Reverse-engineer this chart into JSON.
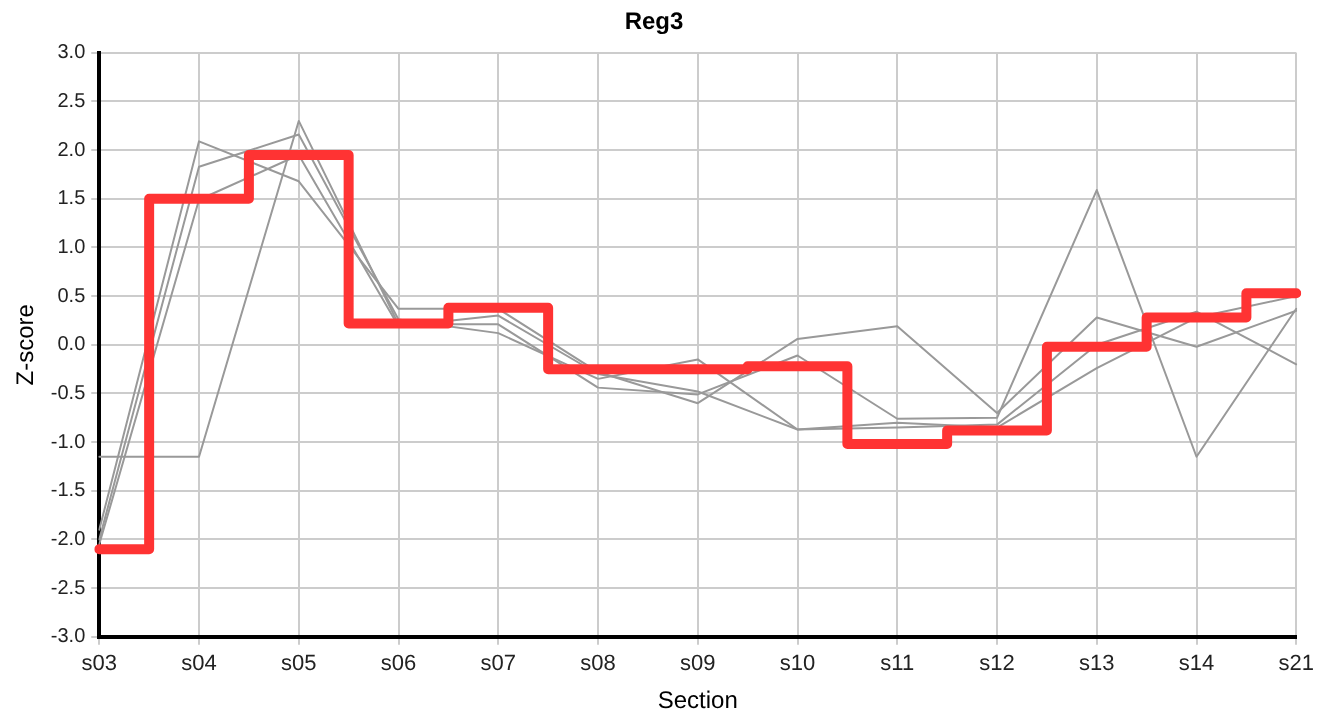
{
  "chart_data": {
    "type": "line",
    "title": "Reg3",
    "xlabel": "Section",
    "ylabel": "Z-score",
    "categories": [
      "s03",
      "s04",
      "s05",
      "s06",
      "s07",
      "s08",
      "s09",
      "s10",
      "s11",
      "s12",
      "s13",
      "s14",
      "s21"
    ],
    "series": [
      {
        "type": "step",
        "color": "#ff3333",
        "values": [
          -2.1,
          1.5,
          1.95,
          0.22,
          0.38,
          -0.25,
          -0.25,
          -0.22,
          -1.02,
          -0.88,
          -0.02,
          0.28,
          0.53
        ]
      },
      {
        "color": "#999999",
        "values": [
          -1.15,
          -1.15,
          2.3,
          0.21,
          0.21,
          -0.44,
          -0.51,
          -0.11,
          -0.76,
          -0.75,
          1.59,
          -1.15,
          0.37
        ]
      },
      {
        "color": "#999999",
        "values": [
          -1.9,
          2.09,
          1.68,
          0.37,
          0.37,
          -0.28,
          -0.6,
          0.06,
          0.19,
          -0.7,
          0.28,
          -0.02,
          0.35
        ]
      },
      {
        "color": "#999999",
        "values": [
          -2.0,
          1.83,
          2.16,
          0.26,
          0.12,
          -0.35,
          -0.15,
          -0.87,
          -0.85,
          -0.82,
          0.0,
          0.34,
          -0.2
        ]
      },
      {
        "color": "#999999",
        "values": [
          -2.05,
          1.49,
          1.95,
          0.19,
          0.3,
          -0.3,
          -0.48,
          -0.87,
          -0.8,
          -0.85,
          -0.24,
          0.28,
          0.5
        ]
      }
    ],
    "ylim": [
      -3,
      3
    ],
    "yticks": [
      {
        "value": -3,
        "label": "-3.0"
      },
      {
        "value": -2.5,
        "label": "-2.5"
      },
      {
        "value": -2,
        "label": "-2.0"
      },
      {
        "value": -1.5,
        "label": "-1.5"
      },
      {
        "value": -1,
        "label": "-1.0"
      },
      {
        "value": -0.5,
        "label": "-0.5"
      },
      {
        "value": 0,
        "label": "0.0"
      },
      {
        "value": 0.5,
        "label": "0.5"
      },
      {
        "value": 1,
        "label": "1.0"
      },
      {
        "value": 1.5,
        "label": "1.5"
      },
      {
        "value": 2,
        "label": "2.0"
      },
      {
        "value": 2.5,
        "label": "2.5"
      },
      {
        "value": 3,
        "label": "3.0"
      }
    ],
    "grid": true,
    "legend": false,
    "marker": "none",
    "line_style": "solid"
  }
}
